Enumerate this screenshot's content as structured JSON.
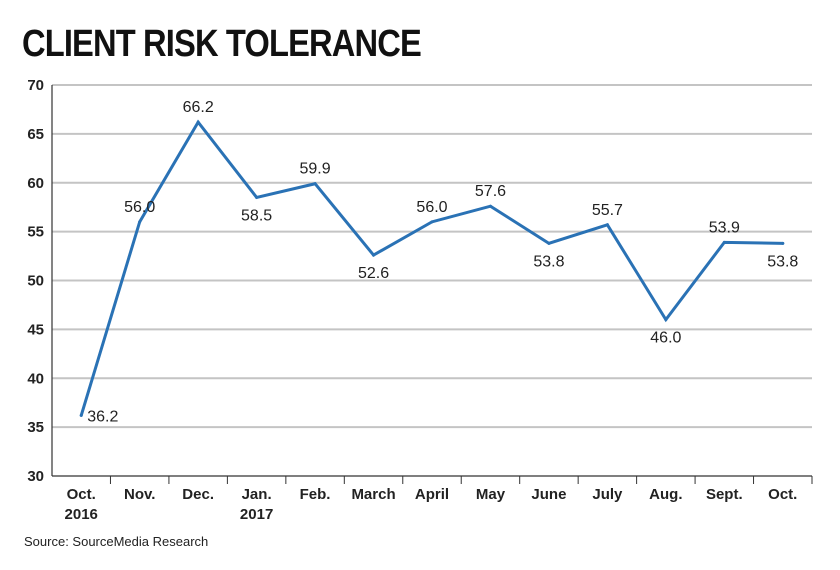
{
  "chart_data": {
    "type": "line",
    "title": "CLIENT RISK TOLERANCE",
    "source": "Source: SourceMedia Research",
    "categories": [
      [
        "Oct.",
        "2016"
      ],
      [
        "Nov."
      ],
      [
        "Dec."
      ],
      [
        "Jan.",
        "2017"
      ],
      [
        "Feb."
      ],
      [
        "March"
      ],
      [
        "April"
      ],
      [
        "May"
      ],
      [
        "June"
      ],
      [
        "July"
      ],
      [
        "Aug."
      ],
      [
        "Sept."
      ],
      [
        "Oct."
      ]
    ],
    "series": [
      {
        "name": "Client risk tolerance",
        "values": [
          36.2,
          56.0,
          66.2,
          58.5,
          59.9,
          52.6,
          56.0,
          57.6,
          53.8,
          55.7,
          46.0,
          53.9,
          53.8
        ]
      }
    ],
    "data_labels": [
      "36.2",
      "56.0",
      "66.2",
      "58.5",
      "59.9",
      "52.6",
      "56.0",
      "57.6",
      "53.8",
      "55.7",
      "46.0",
      "53.9",
      "53.8"
    ],
    "label_side": [
      "right",
      "above",
      "above",
      "below",
      "above",
      "below",
      "above",
      "above",
      "below",
      "above",
      "below",
      "above",
      "below"
    ],
    "yticks": [
      30,
      35,
      40,
      45,
      50,
      55,
      60,
      65,
      70
    ],
    "ylim": [
      30,
      70
    ],
    "grid": true,
    "line_color": "#2a72b5",
    "grid_color": "#c4c4c4"
  }
}
